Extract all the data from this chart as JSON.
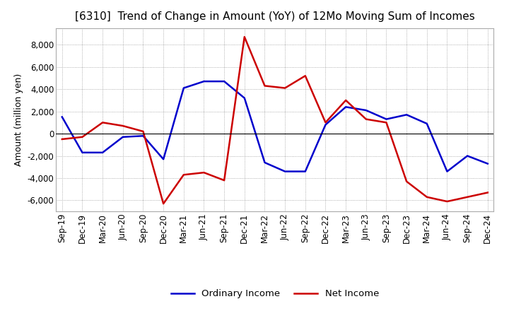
{
  "title": "[6310]  Trend of Change in Amount (YoY) of 12Mo Moving Sum of Incomes",
  "ylabel": "Amount (million yen)",
  "xlabels": [
    "Sep-19",
    "Dec-19",
    "Mar-20",
    "Jun-20",
    "Sep-20",
    "Dec-20",
    "Mar-21",
    "Jun-21",
    "Sep-21",
    "Dec-21",
    "Mar-22",
    "Jun-22",
    "Sep-22",
    "Dec-22",
    "Mar-23",
    "Jun-23",
    "Sep-23",
    "Dec-23",
    "Mar-24",
    "Jun-24",
    "Sep-24",
    "Dec-24"
  ],
  "ordinary_income": [
    1500,
    -1700,
    -1700,
    -300,
    -200,
    -2300,
    4100,
    4700,
    4700,
    3200,
    -2600,
    -3400,
    -3400,
    800,
    2400,
    2100,
    1300,
    1700,
    900,
    -3400,
    -2000,
    -2700
  ],
  "net_income": [
    -500,
    -300,
    1000,
    700,
    200,
    -6300,
    -3700,
    -3500,
    -4200,
    8700,
    4300,
    4100,
    5200,
    1000,
    3000,
    1300,
    1000,
    -4300,
    -5700,
    -6100,
    -5700,
    -5300
  ],
  "ordinary_color": "#0000cc",
  "net_color": "#cc0000",
  "ylim": [
    -7000,
    9500
  ],
  "yticks": [
    -6000,
    -4000,
    -2000,
    0,
    2000,
    4000,
    6000,
    8000
  ],
  "bg_color": "#ffffff",
  "grid_color": "#999999",
  "title_fontsize": 11,
  "tick_fontsize": 8.5,
  "ylabel_fontsize": 9,
  "legend_fontsize": 9.5,
  "legend_labels": [
    "Ordinary Income",
    "Net Income"
  ]
}
